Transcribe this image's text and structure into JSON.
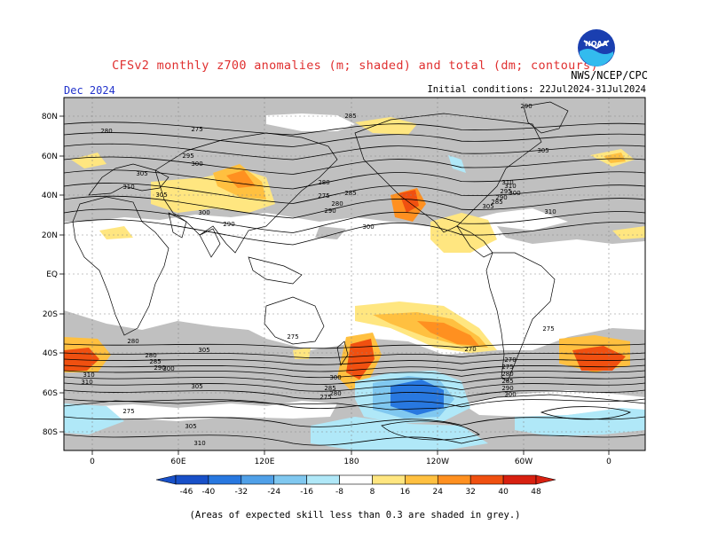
{
  "title": "CFSv2 monthly z700 anomalies (m; shaded) and total (dm; contours)",
  "agency": "NWS/NCEP/CPC",
  "valid_month": "Dec 2024",
  "initial_conditions": "Initial conditions: 22Jul2024-31Jul2024",
  "footnote": "(Areas of expected skill less than 0.3 are shaded in grey.)",
  "logo_text": "NOAA",
  "colors": {
    "skill_grey": "#c0c0c0",
    "pos_8_16": "#ffe680",
    "pos_16_24": "#ffc040",
    "pos_24_32": "#ff9020",
    "pos_32_40": "#f05010",
    "pos_40_48": "#d82010",
    "neg_8_16": "#b0e8f8",
    "neg_16_24": "#80c8f0",
    "neg_24_32": "#50a0e8",
    "neg_32_40": "#2878e0",
    "neg_40_46": "#1850c8"
  },
  "axes": {
    "lat_ticks": [
      "80N",
      "60N",
      "40N",
      "20N",
      "EQ",
      "20S",
      "40S",
      "60S",
      "80S"
    ],
    "lon_ticks": [
      "0",
      "60E",
      "120E",
      "180",
      "120W",
      "60W",
      "0"
    ]
  },
  "colorbar": {
    "ticks": [
      "-46",
      "-40",
      "-32",
      "-24",
      "-16",
      "-8",
      "8",
      "16",
      "24",
      "32",
      "40",
      "48"
    ]
  },
  "contour_labels": [
    "280",
    "275",
    "285",
    "290",
    "295",
    "300",
    "305",
    "310",
    "305",
    "300",
    "290",
    "280",
    "275",
    "280",
    "285",
    "290",
    "300",
    "305",
    "310",
    "310",
    "310",
    "305",
    "300",
    "295",
    "290",
    "285",
    "280",
    "275",
    "270",
    "275",
    "280",
    "285",
    "290",
    "300",
    "305",
    "310",
    "310",
    "305",
    "300",
    "285",
    "280",
    "275",
    "270",
    "275",
    "280",
    "285",
    "290",
    "300",
    "305",
    "310",
    "275"
  ]
}
